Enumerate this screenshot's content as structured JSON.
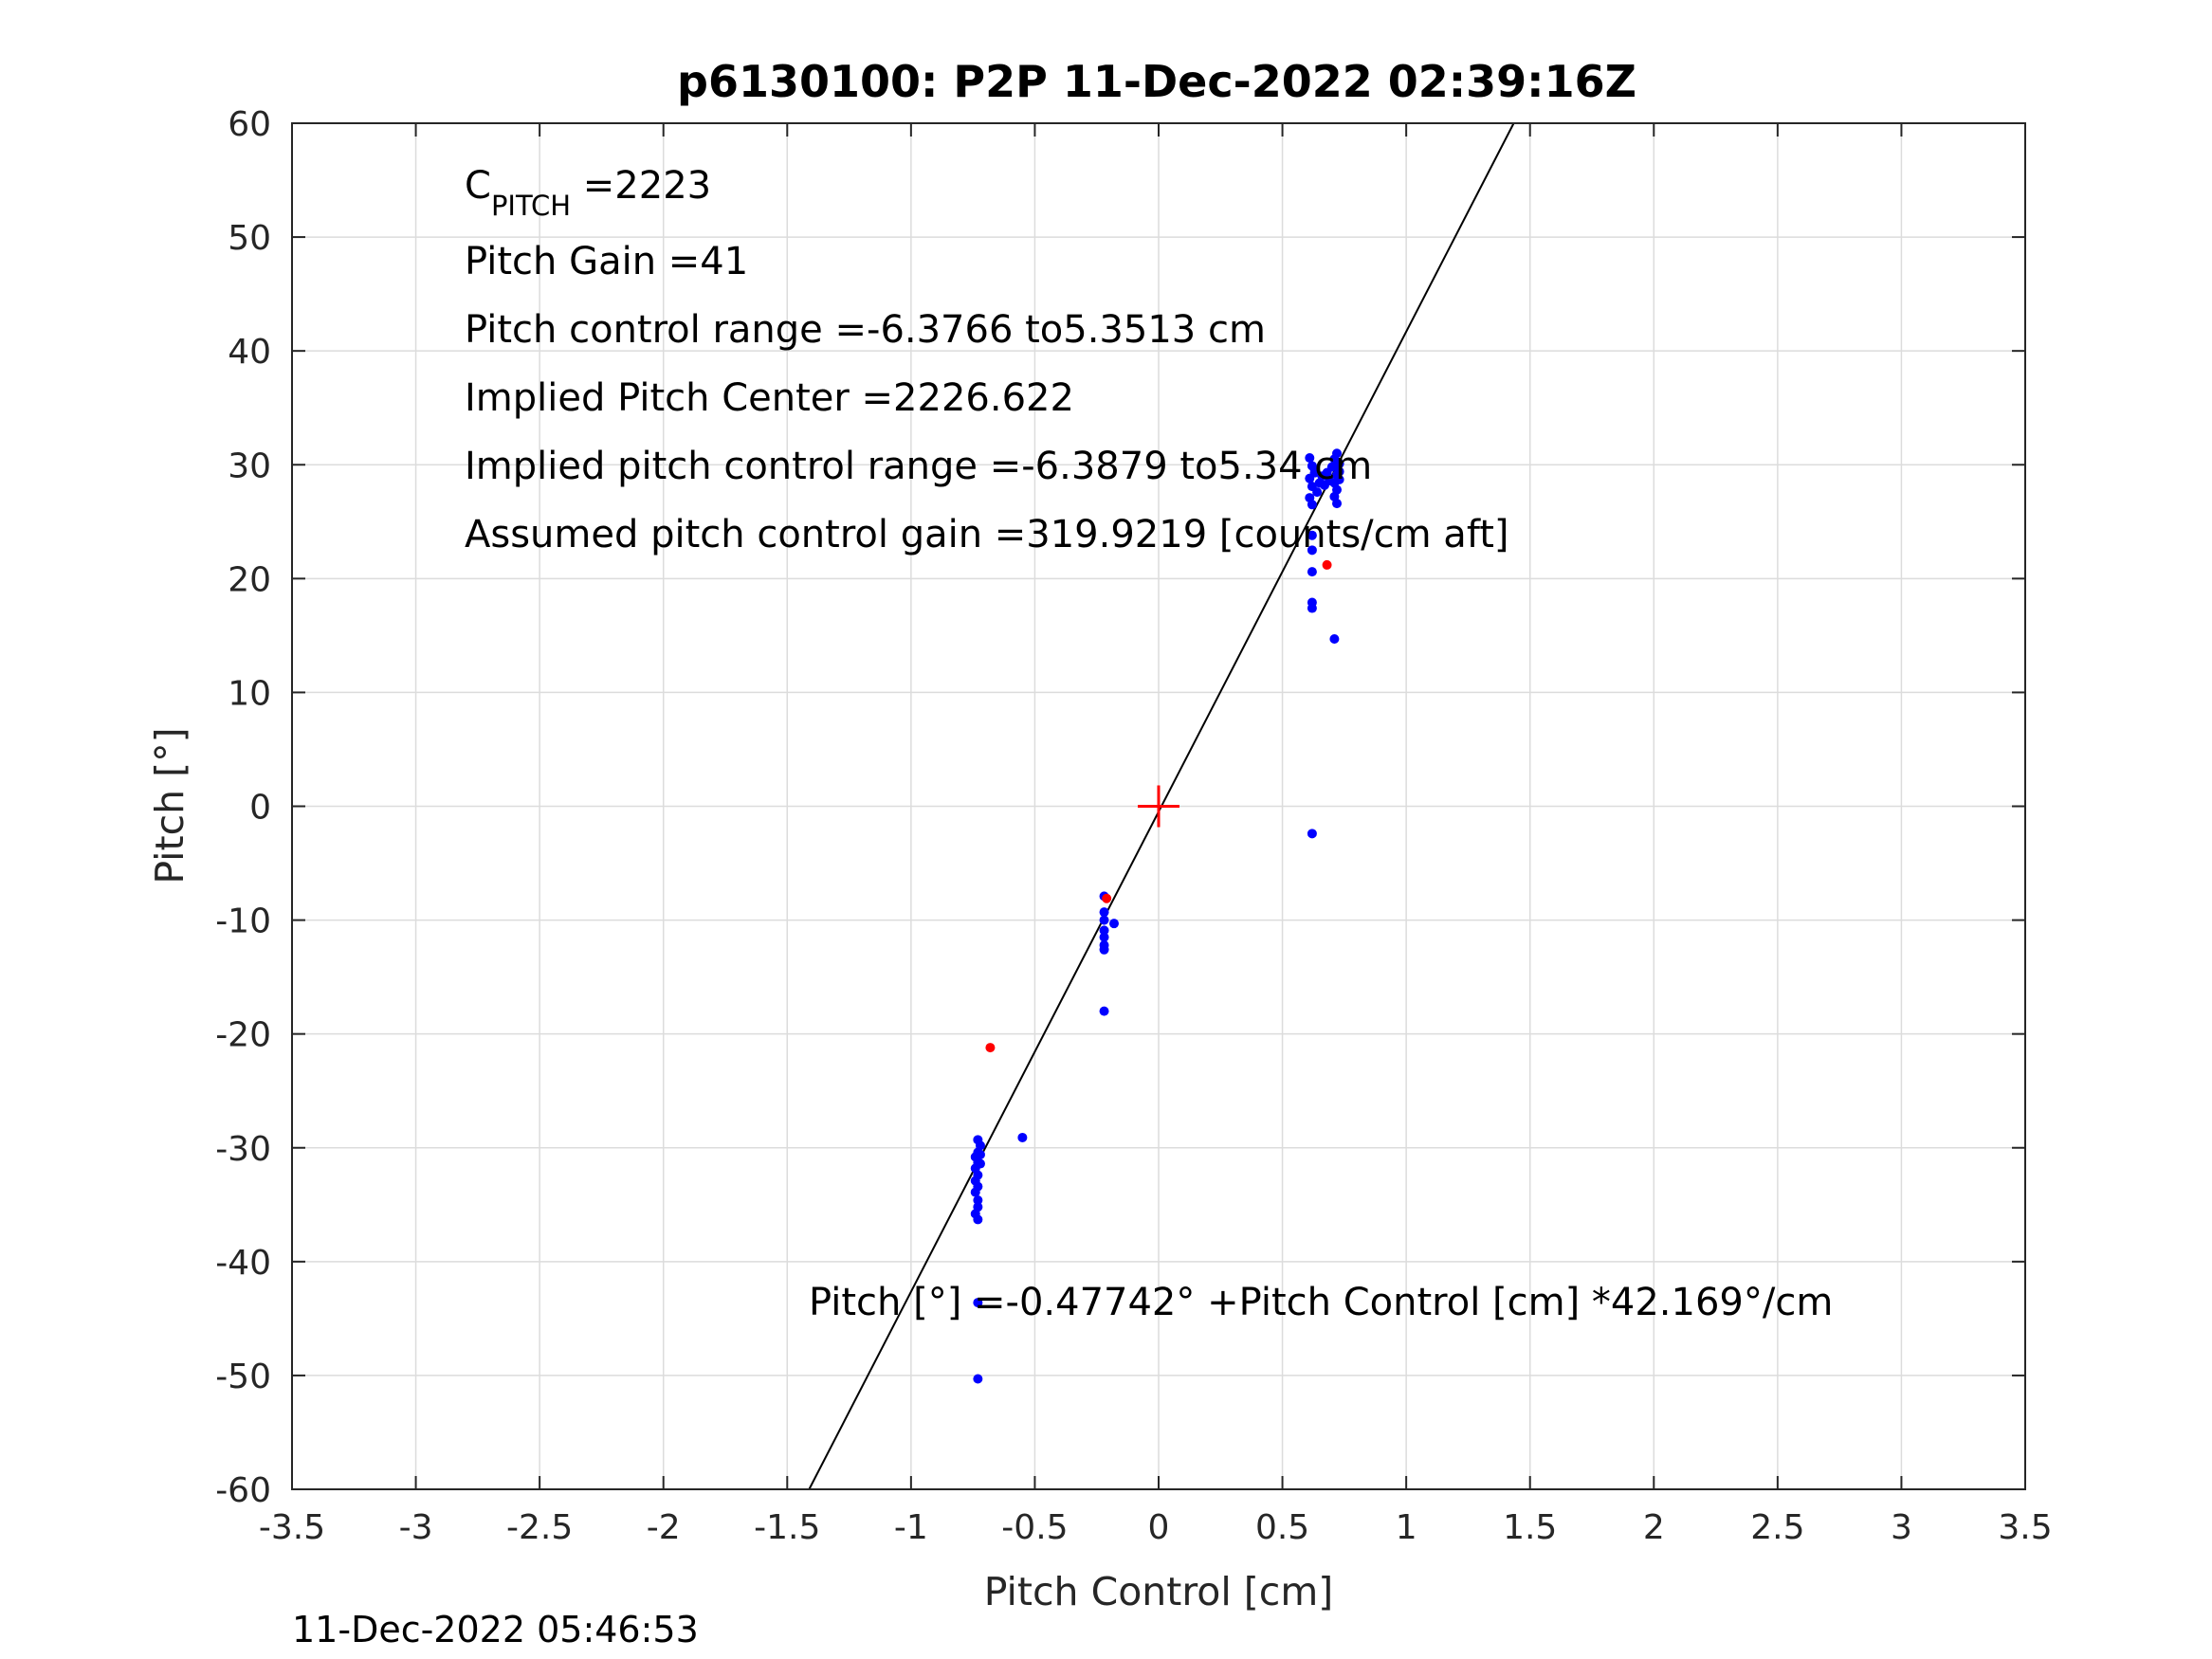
{
  "chart_data": {
    "type": "scatter",
    "title": "p6130100: P2P 11-Dec-2022 02:39:16Z",
    "xlabel": "Pitch Control [cm]",
    "ylabel": "Pitch [°]",
    "xlim": [
      -3.5,
      3.5
    ],
    "ylim": [
      -60,
      60
    ],
    "grid": true,
    "xticks": [
      "-3.5",
      "-3",
      "-2.5",
      "-2",
      "-1.5",
      "-1",
      "-0.5",
      "0",
      "0.5",
      "1",
      "1.5",
      "2",
      "2.5",
      "3",
      "3.5"
    ],
    "yticks": [
      "60",
      "50",
      "40",
      "30",
      "20",
      "10",
      "0",
      "-10",
      "-20",
      "-30",
      "-40",
      "-50",
      "-60"
    ],
    "annotations": {
      "cpitch_main": "C",
      "cpitch_sub": "PITCH",
      "cpitch_value": " =2223",
      "pitch_gain": "Pitch Gain =41",
      "control_range": "Pitch control range =-6.3766 to5.3513 cm",
      "implied_center": "Implied Pitch Center =2226.622",
      "implied_range": "Implied pitch control range =-6.3879 to5.34 cm",
      "assumed_gain": "Assumed pitch control gain =319.9219 [counts/cm aft]",
      "fit_equation": "Pitch [°] =-0.47742° +Pitch Control [cm] *42.169°/cm"
    },
    "footer_timestamp": "11-Dec-2022 05:46:53",
    "fit_line": {
      "intercept": -0.47742,
      "slope": 42.169,
      "color": "#000000"
    },
    "center_marker": {
      "x": 0.0,
      "y": 0.0,
      "color": "#ff0000"
    },
    "series": [
      {
        "color": "#0000ff",
        "points": [
          [
            0.61,
            30.6
          ],
          [
            0.62,
            29.9
          ],
          [
            0.63,
            29.3
          ],
          [
            0.61,
            28.8
          ],
          [
            0.62,
            28.1
          ],
          [
            0.64,
            27.6
          ],
          [
            0.61,
            27.1
          ],
          [
            0.62,
            26.5
          ],
          [
            0.63,
            29.6
          ],
          [
            0.65,
            28.4
          ],
          [
            0.66,
            29.0
          ],
          [
            0.67,
            28.2
          ],
          [
            0.68,
            29.3
          ],
          [
            0.69,
            28.6
          ],
          [
            0.7,
            29.8
          ],
          [
            0.71,
            30.5
          ],
          [
            0.72,
            31.0
          ],
          [
            0.71,
            29.9
          ],
          [
            0.72,
            29.1
          ],
          [
            0.71,
            28.4
          ],
          [
            0.72,
            27.8
          ],
          [
            0.71,
            27.2
          ],
          [
            0.72,
            26.6
          ],
          [
            0.73,
            30.1
          ],
          [
            0.73,
            29.4
          ],
          [
            0.73,
            28.7
          ],
          [
            0.62,
            23.8
          ],
          [
            0.62,
            22.5
          ],
          [
            0.62,
            20.6
          ],
          [
            0.62,
            17.9
          ],
          [
            0.62,
            17.4
          ],
          [
            0.71,
            14.7
          ],
          [
            0.62,
            -2.4
          ],
          [
            -0.22,
            -7.9
          ],
          [
            -0.22,
            -9.3
          ],
          [
            -0.22,
            -10.0
          ],
          [
            -0.22,
            -10.9
          ],
          [
            -0.22,
            -11.5
          ],
          [
            -0.22,
            -12.2
          ],
          [
            -0.22,
            -12.6
          ],
          [
            -0.18,
            -10.3
          ],
          [
            -0.22,
            -18.0
          ],
          [
            -0.55,
            -29.1
          ],
          [
            -0.73,
            -29.3
          ],
          [
            -0.72,
            -29.8
          ],
          [
            -0.73,
            -30.4
          ],
          [
            -0.74,
            -30.8
          ],
          [
            -0.73,
            -31.3
          ],
          [
            -0.74,
            -31.8
          ],
          [
            -0.73,
            -32.4
          ],
          [
            -0.74,
            -32.9
          ],
          [
            -0.73,
            -33.4
          ],
          [
            -0.74,
            -33.9
          ],
          [
            -0.73,
            -34.6
          ],
          [
            -0.73,
            -35.2
          ],
          [
            -0.74,
            -35.8
          ],
          [
            -0.73,
            -36.3
          ],
          [
            -0.72,
            -30.6
          ],
          [
            -0.72,
            -31.4
          ],
          [
            -0.73,
            -43.6
          ],
          [
            -0.73,
            -50.3
          ]
        ]
      },
      {
        "color": "#ff0000",
        "points": [
          [
            0.68,
            21.2
          ],
          [
            -0.68,
            -21.2
          ],
          [
            -0.21,
            -8.1
          ]
        ]
      }
    ]
  }
}
